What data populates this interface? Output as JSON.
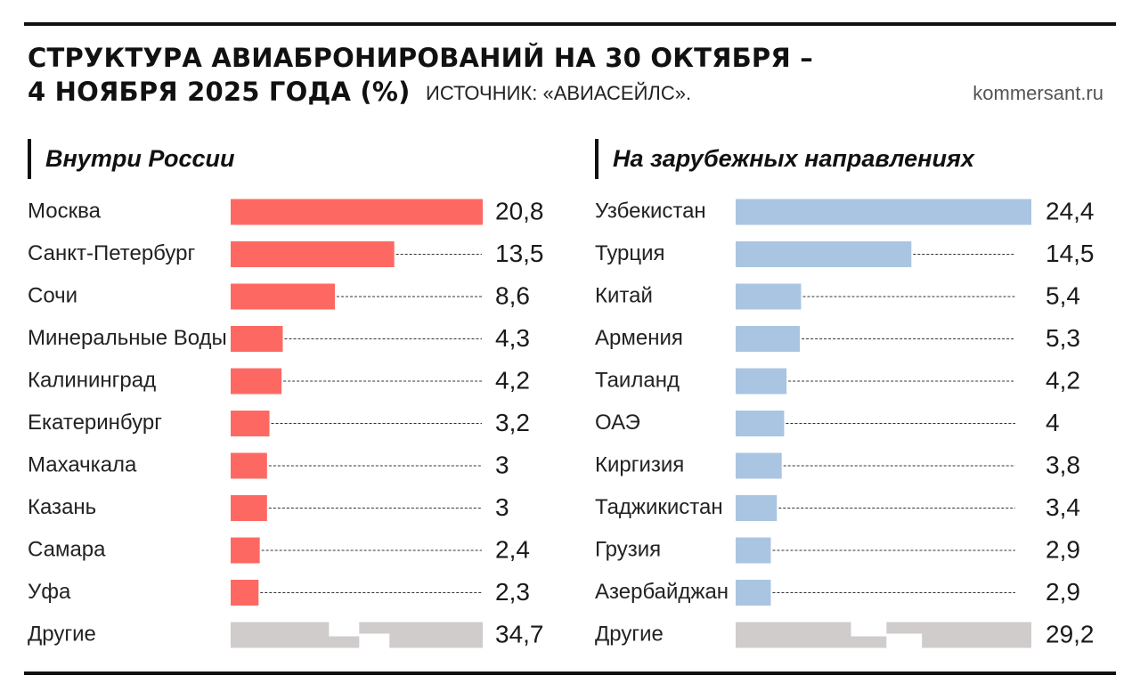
{
  "header": {
    "title_line1": "СТРУКТУРА АВИАБРОНИРОВАНИЙ НА 30 ОКТЯБРЯ –",
    "title_line2": "4 НОЯБРЯ 2025 ГОДА (%)",
    "source": "ИСТОЧНИК: «АВИАСЕЙЛС».",
    "site": "kommersant.ru"
  },
  "chart_data": [
    {
      "type": "bar",
      "orientation": "horizontal",
      "title": "Внутри России",
      "color": "#fd6962",
      "other_color": "#d0cccc",
      "categories": [
        "Москва",
        "Санкт-Петербург",
        "Сочи",
        "Минеральные Воды",
        "Калининград",
        "Екатеринбург",
        "Махачкала",
        "Казань",
        "Самара",
        "Уфа",
        "Другие"
      ],
      "values": [
        20.8,
        13.5,
        8.6,
        4.3,
        4.2,
        3.2,
        3,
        3,
        2.4,
        2.3,
        34.7
      ],
      "value_labels": [
        "20,8",
        "13,5",
        "8,6",
        "4,3",
        "4,2",
        "3,2",
        "3",
        "3",
        "2,4",
        "2,3",
        "34,7"
      ],
      "other_truncated": true,
      "unit": "%"
    },
    {
      "type": "bar",
      "orientation": "horizontal",
      "title": "На зарубежных направлениях",
      "color": "#a9c5e1",
      "other_color": "#d0cccc",
      "categories": [
        "Узбекистан",
        "Турция",
        "Китай",
        "Армения",
        "Таиланд",
        "ОАЭ",
        "Киргизия",
        "Таджикистан",
        "Грузия",
        "Азербайджан",
        "Другие"
      ],
      "values": [
        24.4,
        14.5,
        5.4,
        5.3,
        4.2,
        4,
        3.8,
        3.4,
        2.9,
        2.9,
        29.2
      ],
      "value_labels": [
        "24,4",
        "14,5",
        "5,4",
        "5,3",
        "4,2",
        "4",
        "3,8",
        "3,4",
        "2,9",
        "2,9",
        "29,2"
      ],
      "other_truncated": true,
      "unit": "%"
    }
  ]
}
